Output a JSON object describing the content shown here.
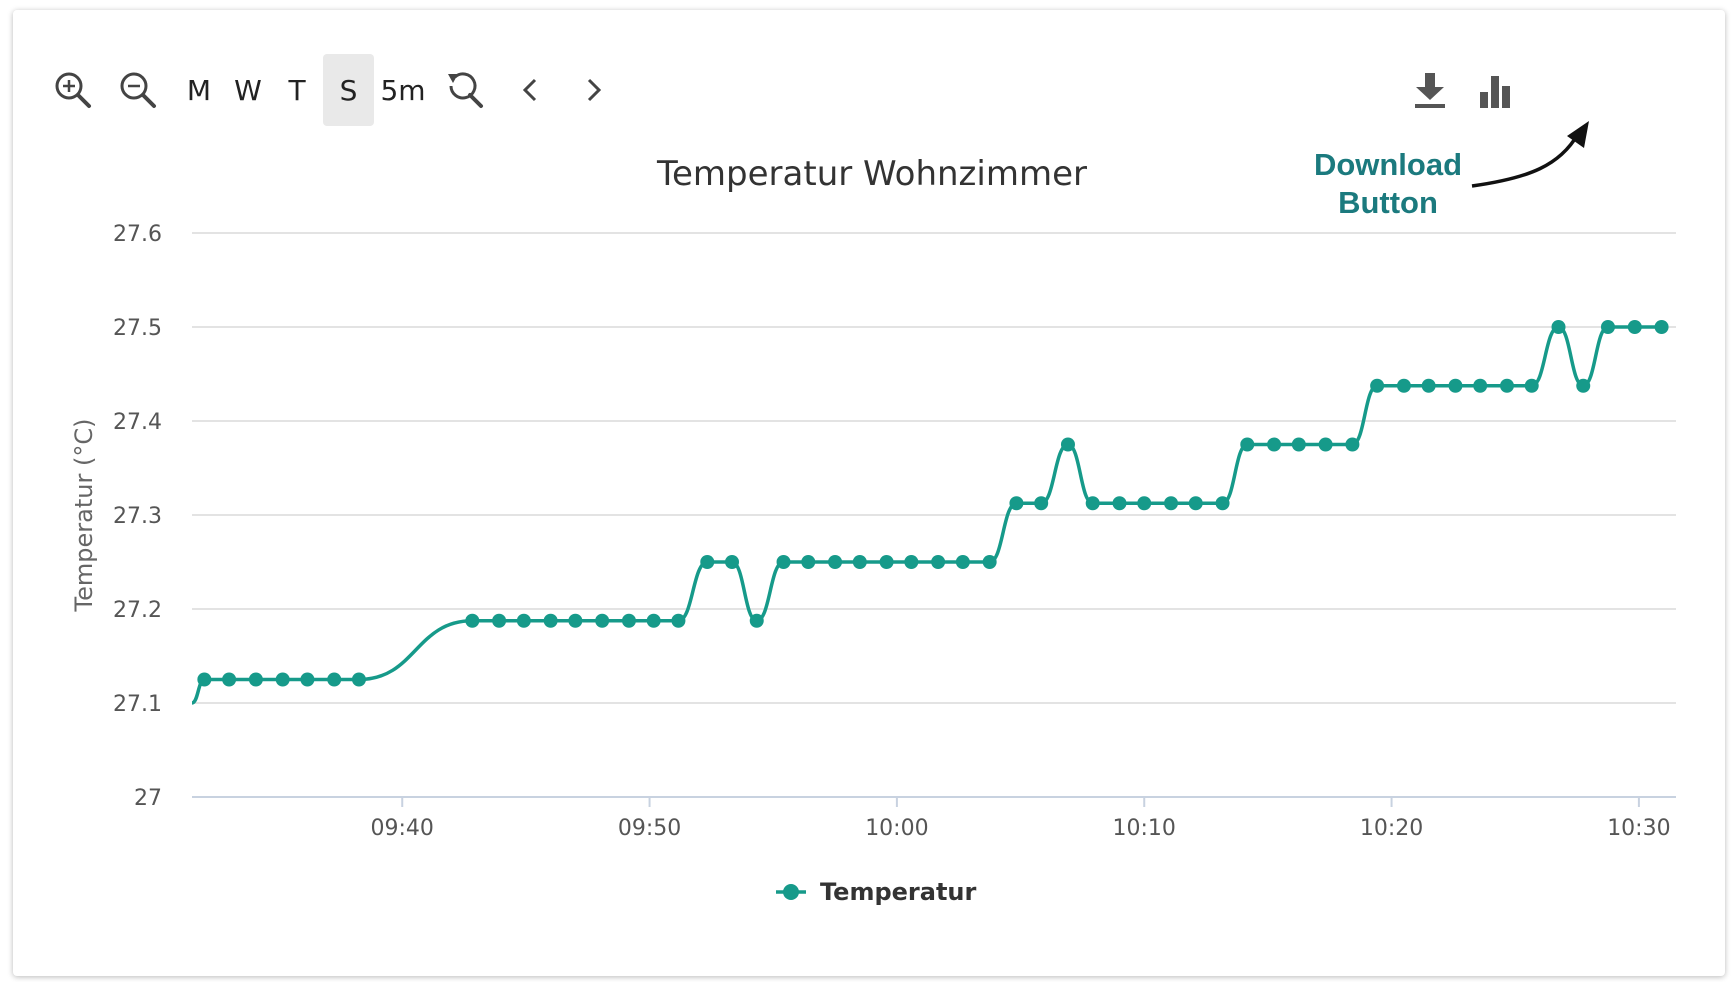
{
  "toolbar": {
    "zoom_in": "zoom-in-icon",
    "zoom_out": "zoom-out-icon",
    "range_buttons": [
      {
        "label": "M",
        "active": false
      },
      {
        "label": "W",
        "active": false
      },
      {
        "label": "T",
        "active": false
      },
      {
        "label": "S",
        "active": true
      },
      {
        "label": "5m",
        "active": false
      }
    ],
    "reset_zoom": "reset-zoom-icon",
    "prev": "chevron-left-icon",
    "next": "chevron-right-icon",
    "download": "download-icon",
    "chart_type": "bar-chart-icon"
  },
  "annotation": {
    "line1": "Download",
    "line2": "Button"
  },
  "colors": {
    "series": "#169a8a",
    "grid": "#e3e3e3",
    "axis": "#c8d2e0",
    "annotation": "#1b7a7e",
    "tick": "#555555"
  },
  "chart_data": {
    "type": "line",
    "title": "Temperatur Wohnzimmer",
    "xlabel": "",
    "ylabel": "Temperatur (°C)",
    "ylim": [
      27,
      27.6
    ],
    "yticks": [
      27,
      27.1,
      27.2,
      27.3,
      27.4,
      27.5,
      27.6
    ],
    "ytick_labels": [
      "27",
      "27.1",
      "27.2",
      "27.3",
      "27.4",
      "27.5",
      "27.6"
    ],
    "xlim": [
      "09:31:30",
      "10:31:30"
    ],
    "xticks": [
      "09:40",
      "09:50",
      "10:00",
      "10:10",
      "10:20",
      "10:30"
    ],
    "grid": true,
    "legend": {
      "position": "bottom-center"
    },
    "line_start": {
      "x": "09:31:30",
      "y": 27.1
    },
    "series": [
      {
        "name": "Temperatur",
        "smooth": true,
        "x": [
          "09:32:00",
          "09:33:00",
          "09:34:05",
          "09:35:10",
          "09:36:10",
          "09:37:15",
          "09:38:15",
          "09:42:50",
          "09:43:55",
          "09:44:55",
          "09:46:00",
          "09:47:00",
          "09:48:05",
          "09:49:10",
          "09:50:10",
          "09:51:10",
          "09:52:20",
          "09:53:20",
          "09:54:20",
          "09:55:25",
          "09:56:25",
          "09:57:30",
          "09:58:30",
          "09:59:35",
          "10:00:35",
          "10:01:40",
          "10:02:40",
          "10:03:45",
          "10:04:50",
          "10:05:50",
          "10:06:55",
          "10:07:55",
          "10:09:00",
          "10:10:00",
          "10:11:05",
          "10:12:05",
          "10:13:10",
          "10:14:10",
          "10:15:15",
          "10:16:15",
          "10:17:20",
          "10:18:25",
          "10:19:25",
          "10:20:30",
          "10:21:30",
          "10:22:35",
          "10:23:35",
          "10:24:40",
          "10:25:40",
          "10:26:45",
          "10:27:45",
          "10:28:45",
          "10:29:50",
          "10:30:55"
        ],
        "y": [
          27.125,
          27.125,
          27.125,
          27.125,
          27.125,
          27.125,
          27.125,
          27.1875,
          27.1875,
          27.1875,
          27.1875,
          27.1875,
          27.1875,
          27.1875,
          27.1875,
          27.1875,
          27.25,
          27.25,
          27.1875,
          27.25,
          27.25,
          27.25,
          27.25,
          27.25,
          27.25,
          27.25,
          27.25,
          27.25,
          27.3125,
          27.3125,
          27.375,
          27.3125,
          27.3125,
          27.3125,
          27.3125,
          27.3125,
          27.3125,
          27.375,
          27.375,
          27.375,
          27.375,
          27.375,
          27.4375,
          27.4375,
          27.4375,
          27.4375,
          27.4375,
          27.4375,
          27.4375,
          27.5,
          27.4375,
          27.5,
          27.5,
          27.5
        ]
      }
    ]
  }
}
